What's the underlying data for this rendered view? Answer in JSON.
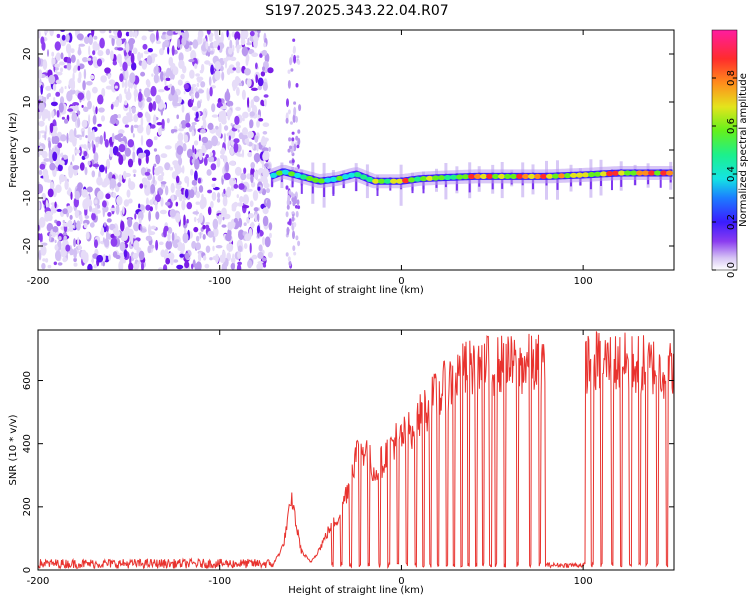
{
  "title": "S197.2025.343.22.04.R07",
  "chart_data": [
    {
      "type": "heatmap",
      "name": "spectrogram",
      "xlabel": "Height of straight line (km)",
      "ylabel": "Frequency (Hz)",
      "xlim": [
        -200,
        150
      ],
      "ylim": [
        -25,
        25
      ],
      "x_ticks": [
        -200,
        -100,
        0,
        100
      ],
      "x_tick_labels": [
        "-200",
        "-100",
        "0",
        "100"
      ],
      "y_ticks": [
        -20,
        -10,
        0,
        10,
        20
      ],
      "y_tick_labels": [
        "-20",
        "-10",
        "0",
        "10",
        "20"
      ],
      "noise_region_km": [
        -200,
        -72
      ],
      "noise_strip_km": [
        -63,
        -56
      ],
      "signal_start_km": -72,
      "signal_line": {
        "x_km": [
          -72,
          -65,
          -55,
          -45,
          -35,
          -25,
          -15,
          -5,
          0,
          10,
          20,
          40,
          60,
          80,
          100,
          120,
          150
        ],
        "freq_hz": [
          -5.5,
          -4.5,
          -5.5,
          -6.5,
          -6.0,
          -5.0,
          -6.5,
          -6.5,
          -6.5,
          -6.0,
          -5.8,
          -5.5,
          -5.5,
          -5.5,
          -5.2,
          -4.8,
          -4.8
        ]
      },
      "colorbar": {
        "label": "Normalized spectral amplitude",
        "ticks": [
          0.0,
          0.2,
          0.4,
          0.6,
          0.8
        ],
        "tick_labels": [
          "0.0",
          "0.2",
          "0.4",
          "0.6",
          "0.8"
        ],
        "range": [
          0,
          1
        ]
      }
    },
    {
      "type": "line",
      "name": "snr",
      "xlabel": "Height of straight line (km)",
      "ylabel": "SNR (10 * v/v)",
      "xlim": [
        -200,
        150
      ],
      "ylim": [
        0,
        760
      ],
      "x_ticks": [
        -200,
        -100,
        0,
        100
      ],
      "x_tick_labels": [
        "-200",
        "-100",
        "0",
        "100"
      ],
      "y_ticks": [
        0,
        200,
        400,
        600
      ],
      "y_tick_labels": [
        "0",
        "200",
        "400",
        "600"
      ],
      "color": "#e8322e",
      "envelope": {
        "x_km": [
          -200,
          -70,
          -65,
          -62,
          -60,
          -58,
          -55,
          -50,
          -45,
          -40,
          -35,
          -30,
          -25,
          -20,
          -15,
          -10,
          -5,
          0,
          5,
          10,
          15,
          20,
          25,
          30,
          35,
          40,
          45,
          50,
          60,
          70,
          80,
          90,
          100,
          110,
          120,
          130,
          140,
          148
        ],
        "snr": [
          20,
          25,
          80,
          180,
          230,
          150,
          60,
          25,
          70,
          130,
          170,
          260,
          380,
          400,
          320,
          360,
          420,
          430,
          460,
          500,
          540,
          570,
          600,
          630,
          650,
          660,
          665,
          670,
          665,
          670,
          670,
          670,
          680,
          680,
          675,
          670,
          665,
          650
        ]
      },
      "dropouts_km": [
        -38,
        -33,
        -28,
        -23,
        -18,
        -12,
        -7,
        -2,
        3,
        8,
        12,
        16,
        20,
        25,
        29,
        33,
        37,
        41,
        45,
        49,
        52,
        57,
        64,
        71,
        76,
        100,
        105,
        110,
        116,
        121,
        126,
        131,
        135,
        141,
        146
      ],
      "gap_km": [
        79,
        101
      ]
    }
  ]
}
